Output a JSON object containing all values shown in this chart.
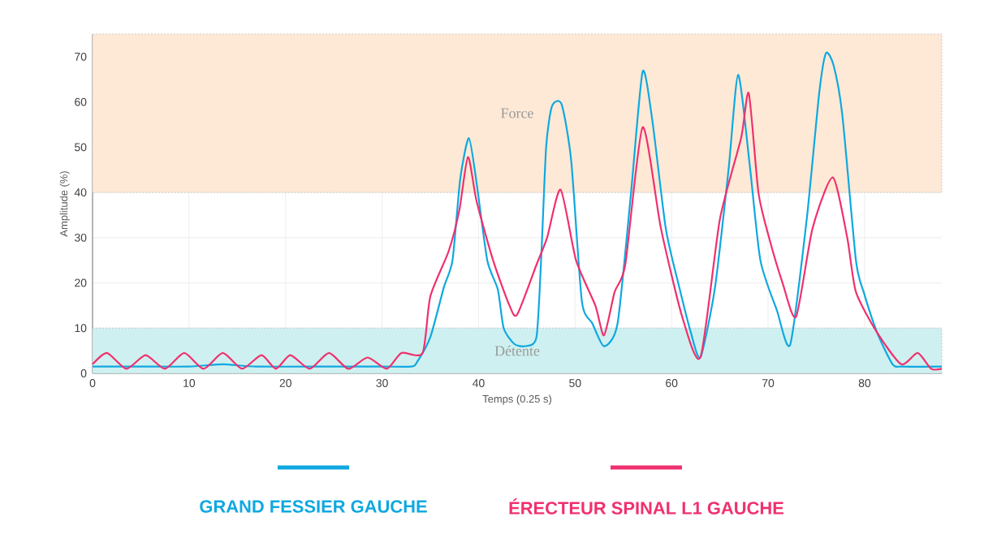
{
  "chart_data": {
    "type": "line",
    "xlabel": "Temps (0.25 s)",
    "ylabel": "Amplitude (%)",
    "xlim": [
      0,
      88
    ],
    "ylim": [
      0,
      75
    ],
    "xticks": [
      0,
      10,
      20,
      30,
      40,
      50,
      60,
      70,
      80
    ],
    "yticks": [
      0,
      10,
      20,
      30,
      40,
      50,
      60,
      70
    ],
    "grid": true,
    "legend": "bottom",
    "bands": [
      {
        "axis": "y",
        "from": 40,
        "to": 75,
        "label": "Force",
        "color": "#fde9d6"
      },
      {
        "axis": "y",
        "from": 0,
        "to": 10,
        "label": "Détente",
        "color": "#cff0f0"
      }
    ],
    "series": [
      {
        "name": "GRAND FESSIER GAUCHE",
        "color": "#0fa8e0",
        "x": [
          0,
          5,
          10,
          13.5,
          17,
          25,
          30,
          33,
          33.6,
          35,
          36.4,
          37.3,
          38.1,
          39,
          39.8,
          40.9,
          42,
          42.6,
          43.7,
          44.8,
          46,
          46.5,
          47,
          47.6,
          48.6,
          49.6,
          50.7,
          51.8,
          53,
          54.4,
          55.8,
          57,
          58,
          59.4,
          60.8,
          62,
          63,
          64.5,
          65.9,
          66.9,
          68.1,
          69.2,
          70.9,
          72.3,
          74,
          75.3,
          76,
          76.8,
          77.7,
          79.1,
          79.9,
          81.3,
          82.9,
          84,
          88
        ],
        "values": [
          1.5,
          1.5,
          1.5,
          2,
          1.5,
          1.5,
          1.5,
          1.5,
          2.4,
          8,
          19,
          25,
          43,
          52,
          42,
          25,
          18.5,
          10,
          6.5,
          6,
          8,
          26,
          50,
          59,
          59.5,
          47,
          16,
          11,
          6,
          11,
          40,
          66.7,
          56,
          32,
          19,
          9,
          3.6,
          19,
          45,
          66,
          46,
          25,
          14,
          6.4,
          34,
          62,
          70.8,
          68,
          57,
          25,
          18,
          9,
          2,
          1.5,
          1.5
        ]
      },
      {
        "name": "ÉRECTEUR SPINAL L1 GAUCHE",
        "color": "#f0306e",
        "x": [
          0,
          1.5,
          3.5,
          5.5,
          7.5,
          9.5,
          11.5,
          13.5,
          15.5,
          17.5,
          19,
          20.5,
          22.5,
          24.5,
          26.5,
          28.5,
          30.5,
          32,
          34.2,
          35,
          36.9,
          38,
          38.9,
          39.8,
          41.5,
          43.2,
          44,
          46,
          47.1,
          48.5,
          50.1,
          52.1,
          53,
          54.1,
          55.2,
          57,
          58.9,
          61.1,
          63,
          65,
          67.2,
          68,
          69,
          70.1,
          71.5,
          72.9,
          74.6,
          76.7,
          78.2,
          79.1,
          81.3,
          83.8,
          85.5,
          86.9,
          88
        ],
        "values": [
          2,
          4.5,
          1,
          4,
          1,
          4.5,
          1,
          4.5,
          1,
          4,
          1,
          4,
          1,
          4.5,
          1,
          3.5,
          1,
          4.5,
          4.5,
          17,
          27,
          36,
          47.8,
          38,
          25,
          15,
          13,
          24,
          30,
          40.6,
          25,
          15,
          8.4,
          18,
          24,
          54.4,
          32,
          12.5,
          3.6,
          34,
          52,
          61.9,
          40,
          30,
          20,
          12.5,
          32,
          43.3,
          30,
          18,
          9,
          2,
          4.5,
          1,
          1
        ]
      }
    ]
  }
}
